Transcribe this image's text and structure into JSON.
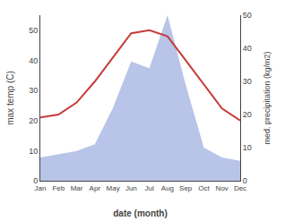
{
  "chart_data": {
    "type": "line",
    "xlabel": "date (month)",
    "ylabel": "max temp (C)",
    "y2label": "med. precipitation (kg/m2)",
    "categories": [
      "Jan",
      "Feb",
      "Mar",
      "Apr",
      "May",
      "Jun",
      "Jul",
      "Aug",
      "Sep",
      "Oct",
      "Nov",
      "Dec"
    ],
    "series": [
      {
        "type": "area",
        "axis": "y2",
        "color": "#b8c4e8",
        "values": [
          7,
          8,
          9,
          11,
          22,
          36,
          34,
          50,
          29,
          10,
          7,
          6
        ]
      },
      {
        "type": "line",
        "color": "#c83a3a",
        "values": [
          21,
          22,
          26,
          33,
          41,
          49,
          50,
          48,
          40,
          32,
          24,
          20
        ]
      }
    ],
    "ylim": [
      0,
      55
    ],
    "yticks": [
      0,
      10,
      20,
      30,
      40,
      50
    ],
    "y2lim": [
      0,
      50
    ],
    "y2ticks": [
      0,
      10,
      20,
      30,
      40,
      50
    ],
    "grid": false
  }
}
